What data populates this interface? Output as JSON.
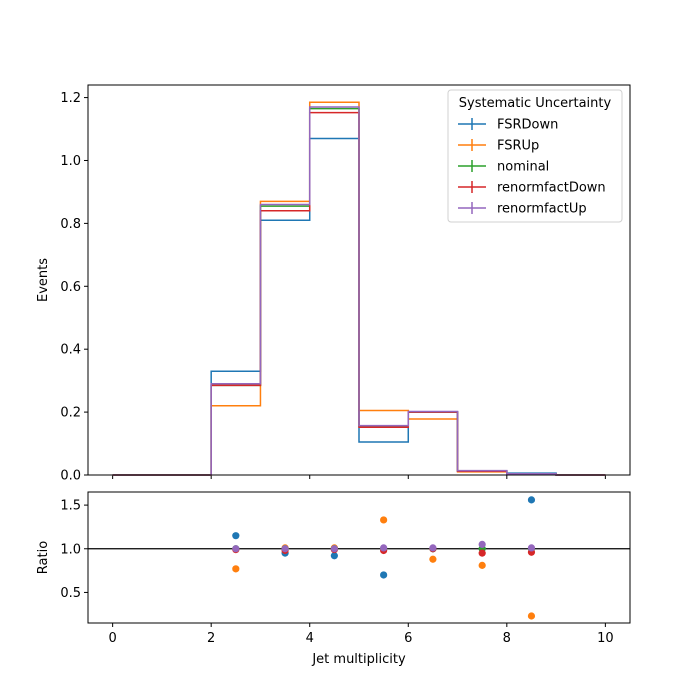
{
  "chart_data": {
    "type": "step-histogram-with-ratio",
    "xlabel": "Jet multiplicity",
    "bin_edges": [
      0,
      1,
      2,
      3,
      4,
      5,
      6,
      7,
      8,
      9,
      10
    ],
    "main": {
      "ylabel": "Events",
      "xlim": [
        -0.5,
        10.5
      ],
      "ylim": [
        0,
        1.24
      ],
      "yticks": [
        0.0,
        0.2,
        0.4,
        0.6,
        0.8,
        1.0,
        1.2
      ],
      "ytick_labels": [
        "0.0",
        "0.2",
        "0.4",
        "0.6",
        "0.8",
        "1.0",
        "1.2"
      ],
      "legend": {
        "title": "Systematic Uncertainty",
        "placement": "top-right"
      },
      "series": [
        {
          "name": "FSRDown",
          "color": "#1f77b4",
          "values": [
            0,
            0,
            0.33,
            0.81,
            1.07,
            0.105,
            0.2,
            0.013,
            0.006,
            0
          ]
        },
        {
          "name": "FSRUp",
          "color": "#ff7f0e",
          "values": [
            0,
            0,
            0.22,
            0.87,
            1.185,
            0.205,
            0.178,
            0.01,
            0.001,
            0
          ]
        },
        {
          "name": "nominal",
          "color": "#2ca02c",
          "values": [
            0,
            0,
            0.285,
            0.855,
            1.165,
            0.155,
            0.2,
            0.013,
            0.004,
            0
          ]
        },
        {
          "name": "renormfactDown",
          "color": "#d62728",
          "values": [
            0,
            0,
            0.285,
            0.84,
            1.152,
            0.152,
            0.2,
            0.012,
            0.004,
            0
          ]
        },
        {
          "name": "renormfactUp",
          "color": "#9467bd",
          "values": [
            0,
            0,
            0.29,
            0.86,
            1.17,
            0.157,
            0.202,
            0.014,
            0.004,
            0
          ]
        }
      ]
    },
    "ratio": {
      "ylabel": "Ratio",
      "ylim": [
        0.15,
        1.65
      ],
      "yticks": [
        0.5,
        1.0,
        1.5
      ],
      "ytick_labels": [
        "0.5",
        "1.0",
        "1.5"
      ],
      "reference_line": 1.0,
      "x": [
        2.5,
        3.5,
        4.5,
        5.5,
        6.5,
        7.5,
        8.5
      ],
      "series": [
        {
          "name": "FSRDown",
          "color": "#1f77b4",
          "values": [
            1.15,
            0.95,
            0.92,
            0.7,
            1.0,
            1.0,
            1.56
          ]
        },
        {
          "name": "FSRUp",
          "color": "#ff7f0e",
          "values": [
            0.77,
            1.01,
            1.01,
            1.33,
            0.88,
            0.81,
            0.23
          ]
        },
        {
          "name": "nominal",
          "color": "#2ca02c",
          "values": [
            1.0,
            1.0,
            1.0,
            1.0,
            1.0,
            1.0,
            1.0
          ]
        },
        {
          "name": "renormfactDown",
          "color": "#d62728",
          "values": [
            0.99,
            0.98,
            0.99,
            0.98,
            1.0,
            0.95,
            0.96
          ]
        },
        {
          "name": "renormfactUp",
          "color": "#9467bd",
          "values": [
            1.0,
            1.0,
            1.0,
            1.01,
            1.01,
            1.05,
            1.01
          ]
        }
      ]
    },
    "xticks": [
      0,
      2,
      4,
      6,
      8,
      10
    ],
    "xtick_labels": [
      "0",
      "2",
      "4",
      "6",
      "8",
      "10"
    ]
  }
}
